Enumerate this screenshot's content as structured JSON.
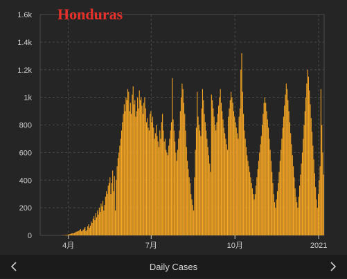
{
  "chart_data": {
    "type": "bar",
    "title": "Honduras",
    "ylim": [
      0,
      1600
    ],
    "y_ticks": [
      0,
      200,
      400,
      600,
      800,
      1000,
      1200,
      1400,
      1600
    ],
    "y_tick_labels": [
      "0",
      "200",
      "400",
      "600",
      "800",
      "1k",
      "1.2k",
      "1.4k",
      "1.6k"
    ],
    "x_ticks": [
      {
        "day": 31,
        "label": "4月"
      },
      {
        "day": 122,
        "label": "7月"
      },
      {
        "day": 214,
        "label": "10月"
      },
      {
        "day": 306,
        "label": "2021"
      }
    ],
    "x_range_days": [
      0,
      312
    ],
    "bar_color": "#f9a825",
    "grid": true,
    "series": [
      {
        "values": [
          0,
          0,
          0,
          0,
          0,
          0,
          0,
          0,
          0,
          0,
          0,
          0,
          0,
          0,
          0,
          0,
          0,
          0,
          0,
          0,
          0,
          0,
          0,
          0,
          1,
          1,
          2,
          2,
          3,
          4,
          5,
          6,
          8,
          10,
          12,
          14,
          16,
          15,
          18,
          22,
          26,
          28,
          30,
          32,
          40,
          45,
          30,
          35,
          42,
          50,
          60,
          30,
          40,
          65,
          80,
          55,
          70,
          100,
          90,
          120,
          140,
          110,
          160,
          130,
          180,
          150,
          200,
          170,
          230,
          210,
          250,
          180,
          220,
          280,
          320,
          300,
          360,
          380,
          420,
          300,
          380,
          470,
          320,
          430,
          180,
          400,
          500,
          560,
          600,
          650,
          700,
          760,
          820,
          880,
          950,
          900,
          1000,
          980,
          1060,
          1040,
          900,
          960,
          880,
          1020,
          1080,
          950,
          980,
          860,
          900,
          1000,
          920,
          1050,
          980,
          1000,
          940,
          880,
          960,
          1000,
          920,
          820,
          850,
          780,
          760,
          880,
          900,
          820,
          860,
          780,
          700,
          740,
          800,
          720,
          680,
          640,
          760,
          700,
          820,
          880,
          760,
          680,
          700,
          620,
          600,
          580,
          650,
          700,
          760,
          820,
          1140,
          840,
          760,
          680,
          600,
          540,
          620,
          700,
          760,
          900,
          1000,
          1100,
          1060,
          960,
          880,
          760,
          640,
          540,
          480,
          420,
          380,
          300,
          260,
          220,
          180,
          420,
          620,
          780,
          1040,
          860,
          800,
          760,
          720,
          920,
          1060,
          980,
          880,
          820,
          760,
          700,
          640,
          580,
          520,
          460,
          1020,
          980,
          920,
          860,
          800,
          760,
          820,
          880,
          940,
          1000,
          1060,
          960,
          900,
          840,
          780,
          740,
          700,
          660,
          620,
          860,
          920,
          980,
          1040,
          1000,
          960,
          900,
          860,
          820,
          780,
          740,
          700,
          860,
          920,
          1200,
          1320,
          1040,
          880,
          760,
          700,
          640,
          580,
          540,
          500,
          460,
          420,
          380,
          340,
          300,
          260,
          300,
          360,
          420,
          480,
          540,
          600,
          660,
          720,
          800,
          880,
          960,
          1000,
          960,
          900,
          840,
          780,
          700,
          620,
          540,
          460,
          380,
          300,
          240,
          200,
          260,
          320,
          380,
          460,
          540,
          620,
          700,
          780,
          860,
          940,
          1020,
          1100,
          1060,
          980,
          900,
          820,
          740,
          660,
          580,
          500,
          420,
          340,
          280,
          240,
          200,
          280,
          360,
          440,
          520,
          600,
          700,
          800,
          900,
          1000,
          1100,
          1200,
          1150,
          1050,
          950,
          850,
          750,
          650,
          550,
          450,
          350,
          260,
          200,
          300,
          400,
          500,
          1060,
          800,
          600,
          440
        ]
      }
    ]
  },
  "footer": {
    "label": "Daily Cases",
    "prev_icon": "chevron-left-icon",
    "next_icon": "chevron-right-icon"
  },
  "colors": {
    "background": "#252525",
    "grid": "#4a4a4a",
    "axis_text": "#cfcfcf",
    "title": "#e8302a"
  }
}
